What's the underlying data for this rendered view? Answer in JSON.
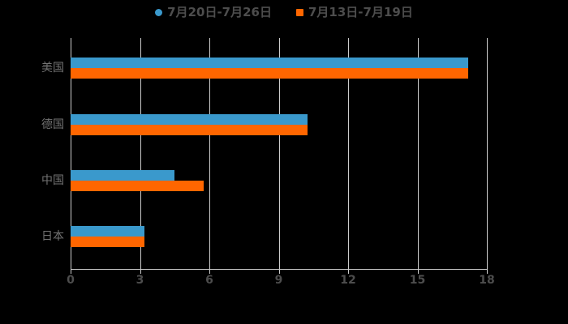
{
  "colors": {
    "series_blue": "#3a99cc",
    "series_orange": "#ff6600",
    "grid_line": "#cccccc",
    "axis_line": "#cccccc",
    "tick_label": "#4d4d4d",
    "category_label": "#737373",
    "legend_text": "#4d4d4d",
    "background": "#000000"
  },
  "legend": {
    "items": [
      {
        "label": "7月20日-7月26日",
        "color": "#3a99cc",
        "shape": "circle"
      },
      {
        "label": "7月13日-7月19日",
        "color": "#ff6600",
        "shape": "square"
      }
    ]
  },
  "chart_data": {
    "type": "bar",
    "orientation": "horizontal",
    "title": "",
    "xlabel": "",
    "ylabel": "",
    "categories": [
      "美国",
      "德国",
      "中国",
      "日本"
    ],
    "series": [
      {
        "name": "7月20日-7月26日",
        "color": "#3a99cc",
        "values": [
          17.2,
          10.25,
          4.5,
          3.2
        ]
      },
      {
        "name": "7月13日-7月19日",
        "color": "#ff6600",
        "values": [
          17.2,
          10.25,
          5.75,
          3.2
        ]
      }
    ],
    "x_ticks": [
      0,
      3,
      6,
      9,
      12,
      15,
      18
    ],
    "xlim": [
      0,
      18
    ],
    "grid": true,
    "legend_position": "top-center"
  }
}
